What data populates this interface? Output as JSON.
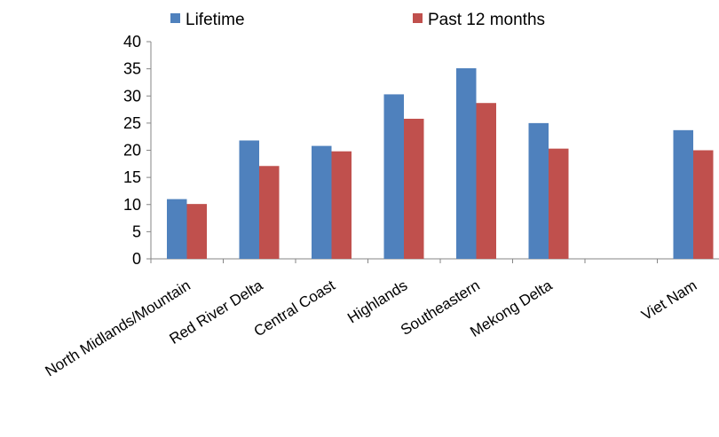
{
  "chart_data": {
    "type": "bar",
    "categories": [
      "North Midlands/Mountain",
      "Red River Delta",
      "Central Coast",
      "Highlands",
      "Southeastern",
      "Mekong Delta",
      "",
      "Viet Nam"
    ],
    "series": [
      {
        "name": "Lifetime",
        "color": "#4f81bd",
        "values": [
          11.0,
          21.8,
          20.8,
          30.3,
          35.1,
          25.0,
          null,
          23.7
        ]
      },
      {
        "name": "Past 12 months",
        "color": "#c0504d",
        "values": [
          10.1,
          17.1,
          19.8,
          25.8,
          28.7,
          20.3,
          null,
          20.0
        ]
      }
    ],
    "ylim": [
      0,
      40
    ],
    "yticks": [
      0,
      5,
      10,
      15,
      20,
      25,
      30,
      35,
      40
    ],
    "grid": false,
    "legend_position": "top",
    "title": "",
    "xlabel": "",
    "ylabel": ""
  }
}
